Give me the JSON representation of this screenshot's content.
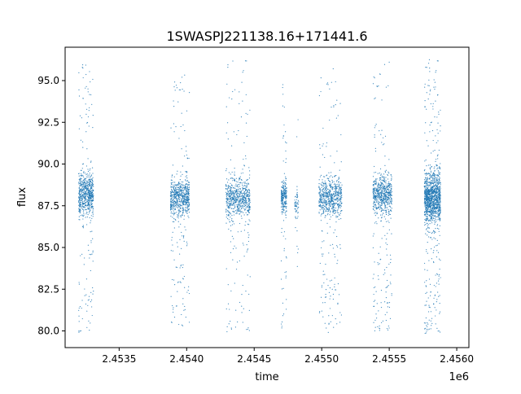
{
  "chart_data": {
    "type": "scatter",
    "title": "1SWASPJ221138.16+171441.6",
    "xlabel": "time",
    "ylabel": "flux",
    "x_offset_label": "1e6",
    "xlim": [
      2453100,
      2456090
    ],
    "ylim": [
      79.0,
      97.0
    ],
    "x_ticks": [
      {
        "value": 2453500,
        "label": "2.4535"
      },
      {
        "value": 2454000,
        "label": "2.4540"
      },
      {
        "value": 2454500,
        "label": "2.4545"
      },
      {
        "value": 2455000,
        "label": "2.4550"
      },
      {
        "value": 2455500,
        "label": "2.4555"
      },
      {
        "value": 2456000,
        "label": "2.4560"
      }
    ],
    "y_ticks": [
      {
        "value": 80.0,
        "label": "80.0"
      },
      {
        "value": 82.5,
        "label": "82.5"
      },
      {
        "value": 85.0,
        "label": "85.0"
      },
      {
        "value": 87.5,
        "label": "87.5"
      },
      {
        "value": 90.0,
        "label": "90.0"
      },
      {
        "value": 92.5,
        "label": "92.5"
      },
      {
        "value": 95.0,
        "label": "95.0"
      }
    ],
    "grid": false,
    "legend": "none",
    "point_color": "#1f77b4",
    "series": [
      {
        "clusters": [
          {
            "x": [
              2453200,
              2453310
            ],
            "y_center": 88.2,
            "y_spread": 1.1,
            "y_min": 79.9,
            "y_max": 96.2,
            "density": "high"
          },
          {
            "x": [
              2453880,
              2454020
            ],
            "y_center": 88.0,
            "y_spread": 1.0,
            "y_min": 80.0,
            "y_max": 95.8,
            "density": "high"
          },
          {
            "x": [
              2454290,
              2454470
            ],
            "y_center": 88.0,
            "y_spread": 1.1,
            "y_min": 79.9,
            "y_max": 96.3,
            "density": "high"
          },
          {
            "x": [
              2454700,
              2454740
            ],
            "y_center": 88.0,
            "y_spread": 0.9,
            "y_min": 80.1,
            "y_max": 94.8,
            "density": "medium"
          },
          {
            "x": [
              2454800,
              2454830
            ],
            "y_center": 87.5,
            "y_spread": 0.7,
            "y_min": 82.4,
            "y_max": 93.8,
            "density": "low"
          },
          {
            "x": [
              2454980,
              2455150
            ],
            "y_center": 88.0,
            "y_spread": 1.0,
            "y_min": 79.9,
            "y_max": 95.9,
            "density": "high"
          },
          {
            "x": [
              2455380,
              2455520
            ],
            "y_center": 88.1,
            "y_spread": 1.0,
            "y_min": 80.0,
            "y_max": 96.2,
            "density": "high"
          },
          {
            "x": [
              2455760,
              2455880
            ],
            "y_center": 88.0,
            "y_spread": 1.4,
            "y_min": 79.8,
            "y_max": 96.3,
            "density": "very-high"
          }
        ]
      }
    ]
  }
}
